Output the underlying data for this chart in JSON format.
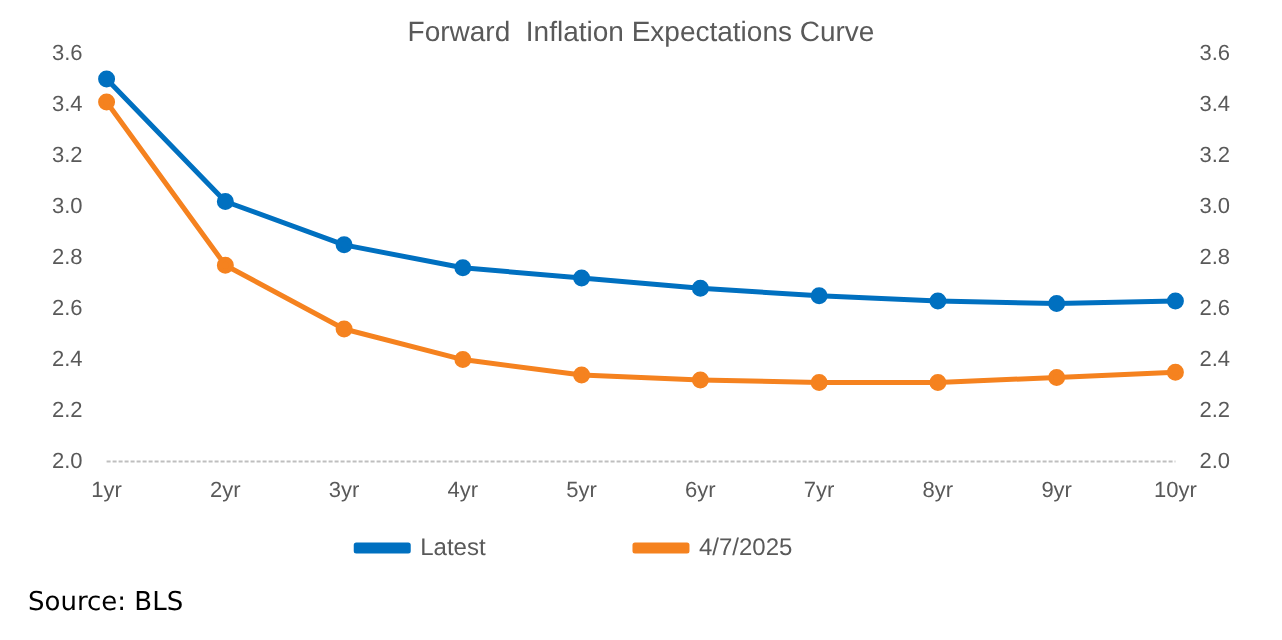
{
  "chart_data": {
    "type": "line",
    "title": "Forward  Inflation Expectations Curve",
    "categories": [
      "1yr",
      "2yr",
      "3yr",
      "4yr",
      "5yr",
      "6yr",
      "7yr",
      "8yr",
      "9yr",
      "10yr"
    ],
    "series": [
      {
        "name": "Latest",
        "color": "#0070c0",
        "values": [
          3.5,
          3.02,
          2.85,
          2.76,
          2.72,
          2.68,
          2.65,
          2.63,
          2.62,
          2.63
        ]
      },
      {
        "name": "4/7/2025",
        "color": "#f5821f",
        "values": [
          3.41,
          2.77,
          2.52,
          2.4,
          2.34,
          2.32,
          2.31,
          2.31,
          2.33,
          2.35
        ]
      }
    ],
    "ylim": [
      2.0,
      3.6
    ],
    "yticks": [
      {
        "value": 2.0,
        "label": "2.0"
      },
      {
        "value": 2.2,
        "label": "2.2"
      },
      {
        "value": 2.4,
        "label": "2.4"
      },
      {
        "value": 2.6,
        "label": "2.6"
      },
      {
        "value": 2.8,
        "label": "2.8"
      },
      {
        "value": 3.0,
        "label": "3.0"
      },
      {
        "value": 3.2,
        "label": "3.2"
      },
      {
        "value": 3.4,
        "label": "3.4"
      },
      {
        "value": 3.6,
        "label": "3.6"
      }
    ],
    "y2lim": [
      2.0,
      3.6
    ],
    "y2ticks": [
      {
        "value": 2.0,
        "label": "2.0"
      },
      {
        "value": 2.2,
        "label": "2.2"
      },
      {
        "value": 2.4,
        "label": "2.4"
      },
      {
        "value": 2.6,
        "label": "2.6"
      },
      {
        "value": 2.8,
        "label": "2.8"
      },
      {
        "value": 3.0,
        "label": "3.0"
      },
      {
        "value": 3.2,
        "label": "3.2"
      },
      {
        "value": 3.4,
        "label": "3.4"
      },
      {
        "value": 3.6,
        "label": "3.6"
      }
    ],
    "grid": false,
    "legend": "bottom",
    "marker": "circle",
    "line_style": "solid",
    "annotations": [
      "Source: BLS"
    ]
  }
}
